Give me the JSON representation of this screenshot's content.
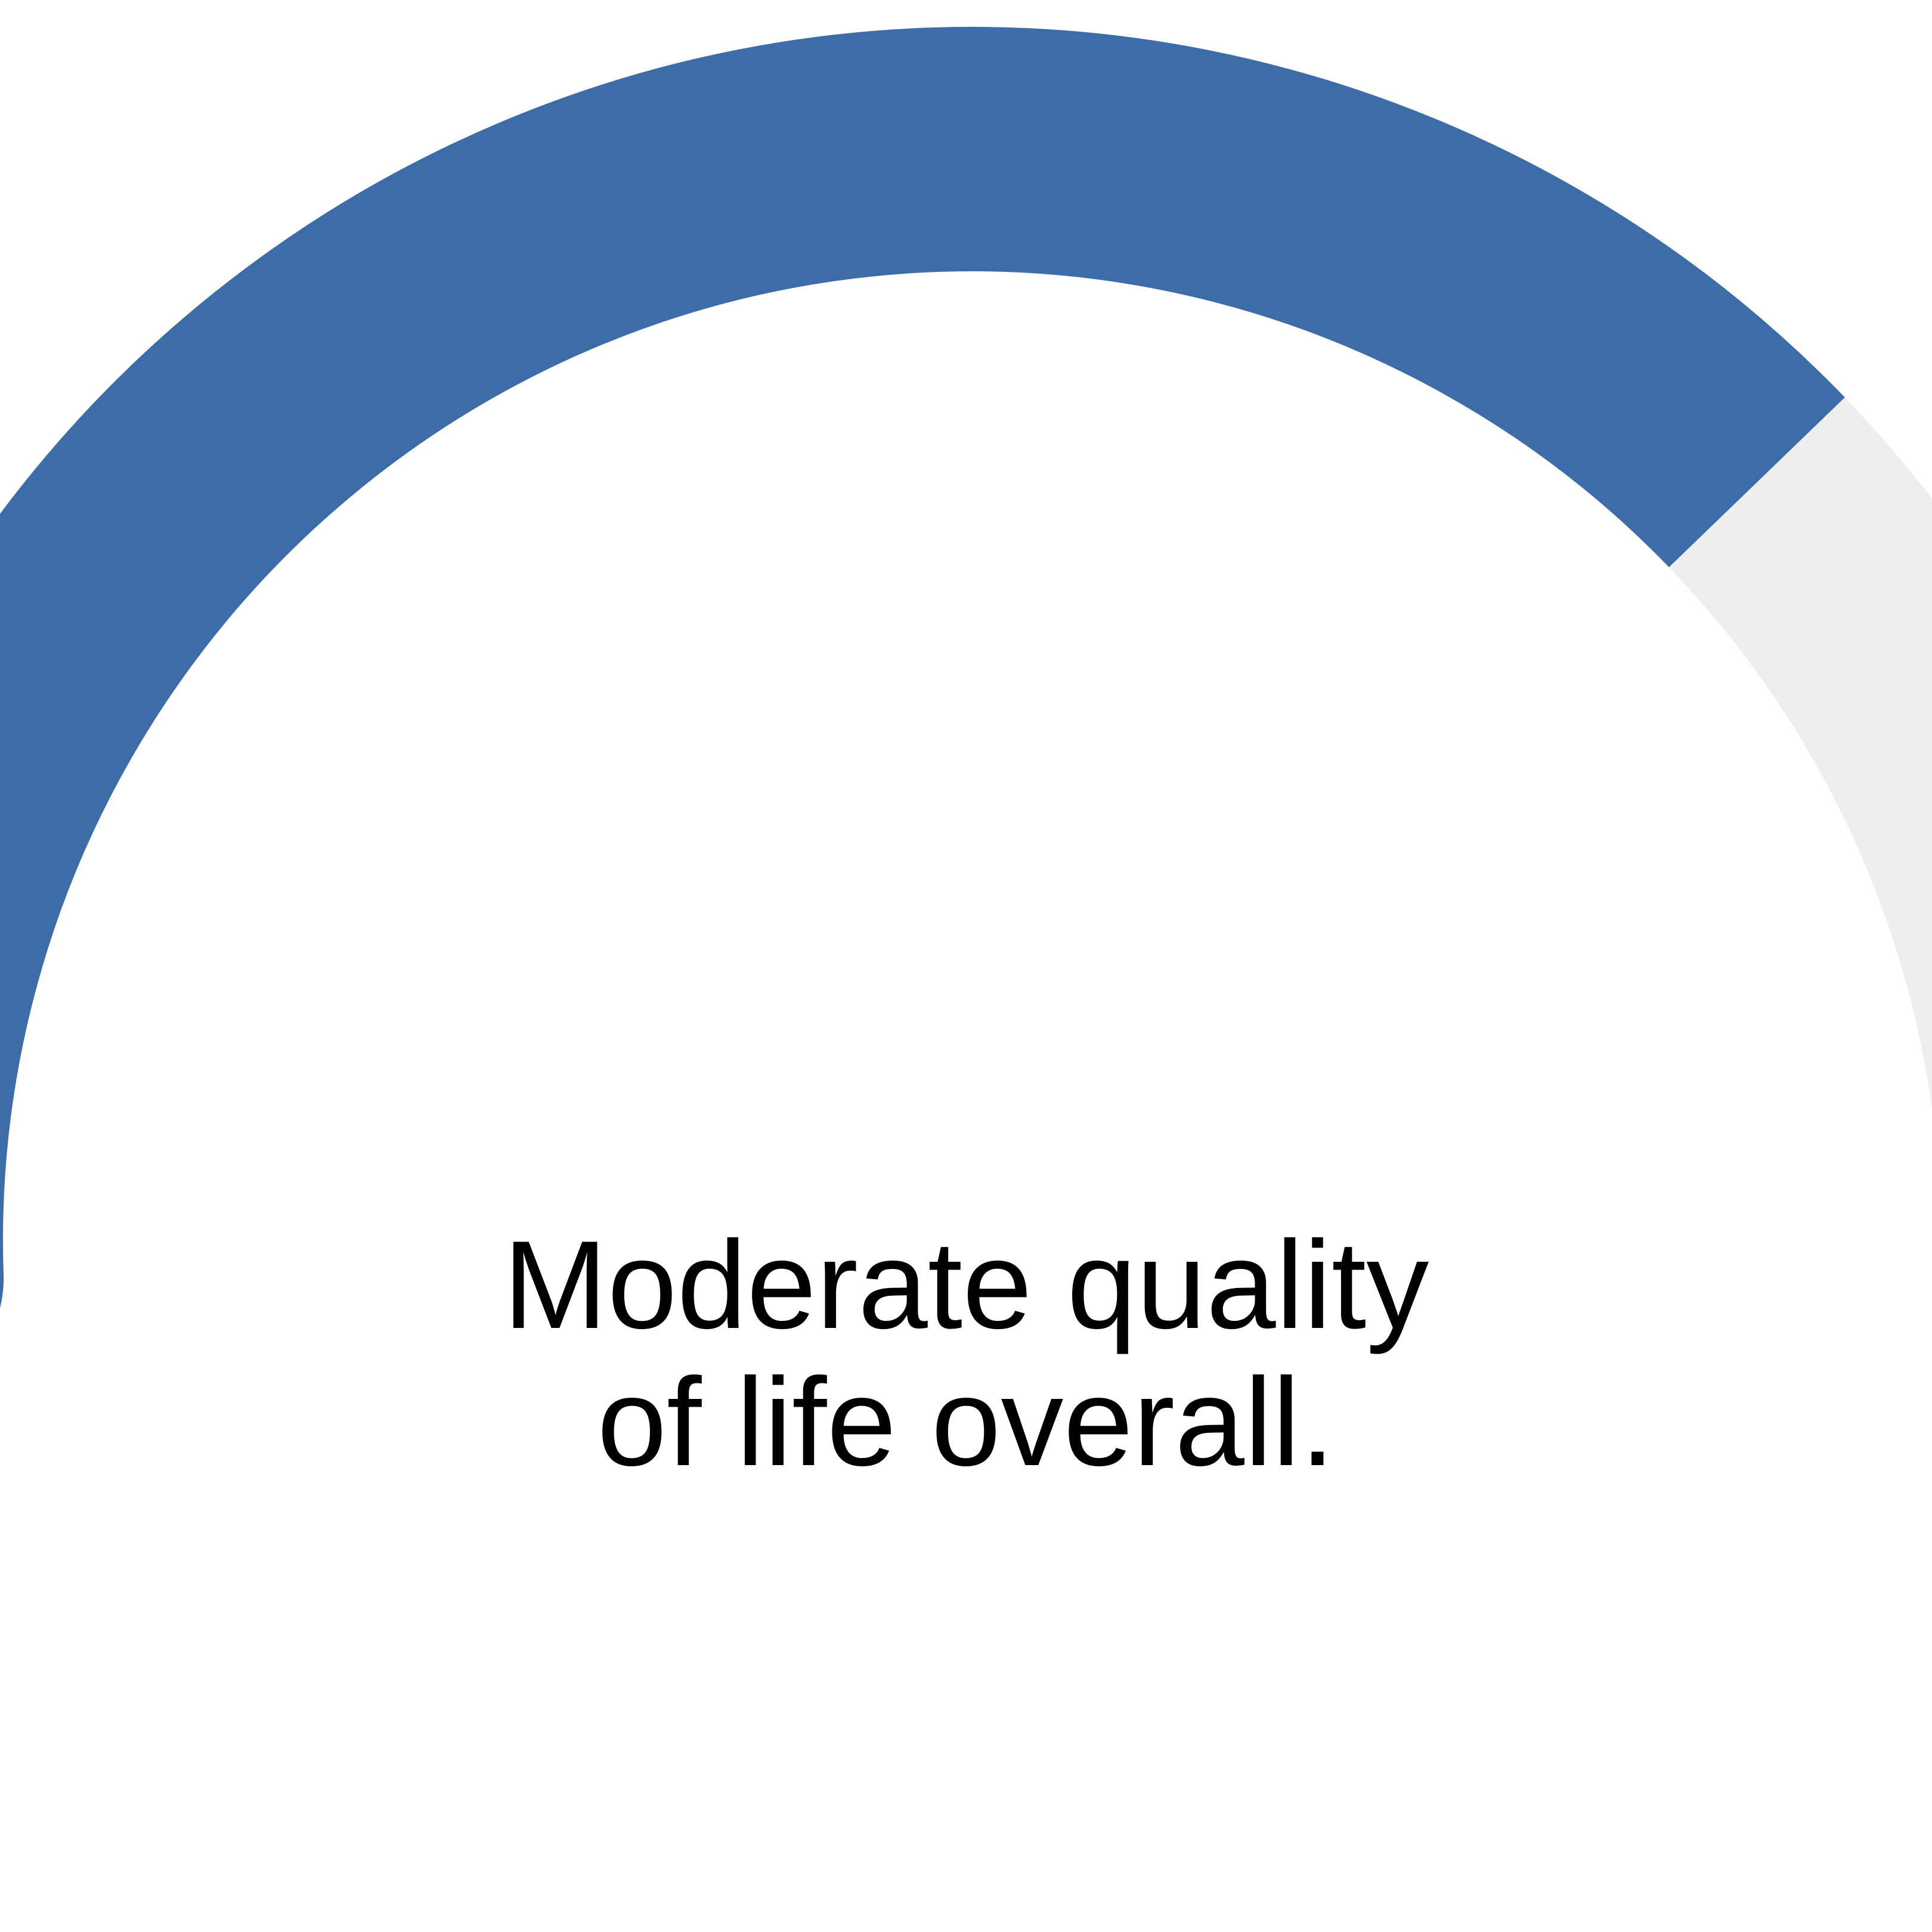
{
  "gauge": {
    "value_fraction": 0.75,
    "fill_color": "#3d6da8",
    "track_color": "#eeeeee",
    "label_lines": [
      "Moderate quality",
      "of life overall."
    ]
  }
}
